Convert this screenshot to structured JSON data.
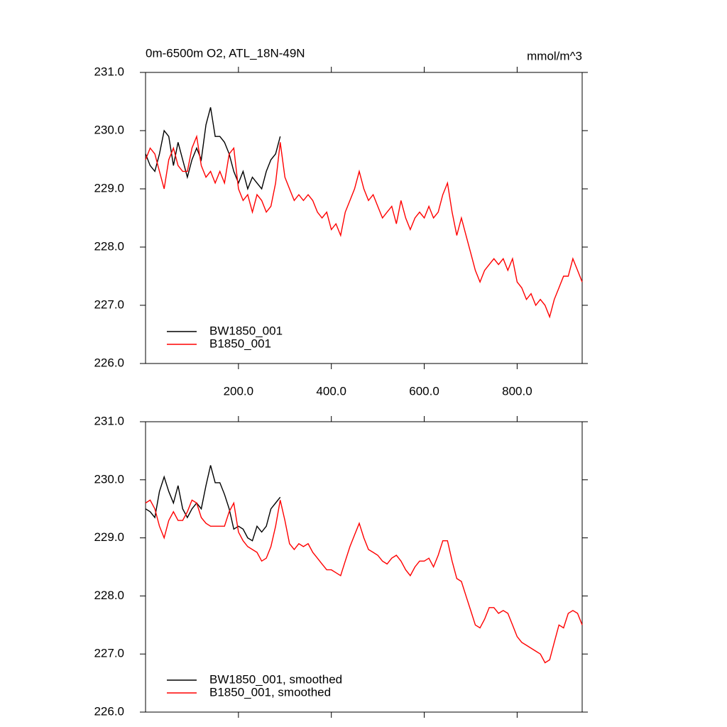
{
  "chart_data": [
    {
      "type": "line",
      "title": "0m-6500m O2, ATL_18N-49N",
      "units": "mmol/m^3",
      "xlim": [
        0,
        940
      ],
      "ylim": [
        226,
        231
      ],
      "xticks": [
        {
          "value": 200,
          "label": "200.0"
        },
        {
          "value": 400,
          "label": "400.0"
        },
        {
          "value": 600,
          "label": "600.0"
        },
        {
          "value": 800,
          "label": "800.0"
        }
      ],
      "yticks": [
        {
          "value": 226,
          "label": "226.0"
        },
        {
          "value": 227,
          "label": "227.0"
        },
        {
          "value": 228,
          "label": "228.0"
        },
        {
          "value": 229,
          "label": "229.0"
        },
        {
          "value": 230,
          "label": "230.0"
        },
        {
          "value": 231,
          "label": "231.0"
        }
      ],
      "legend": "lower left",
      "series": [
        {
          "name": "BW1850_001",
          "color": "#000000",
          "x": [
            0,
            10,
            20,
            30,
            40,
            50,
            60,
            70,
            80,
            90,
            100,
            110,
            120,
            130,
            140,
            150,
            160,
            170,
            180,
            190,
            200,
            210,
            220,
            230,
            240,
            250,
            260,
            270,
            280,
            290
          ],
          "values": [
            229.6,
            229.4,
            229.3,
            229.6,
            230.0,
            229.9,
            229.4,
            229.8,
            229.5,
            229.2,
            229.5,
            229.7,
            229.5,
            230.1,
            230.4,
            229.9,
            229.9,
            229.8,
            229.6,
            229.3,
            229.1,
            229.3,
            229.0,
            229.2,
            229.1,
            229.0,
            229.3,
            229.5,
            229.6,
            229.9
          ]
        },
        {
          "name": "B1850_001",
          "color": "#ff0000",
          "x": [
            0,
            10,
            20,
            30,
            40,
            50,
            60,
            70,
            80,
            90,
            100,
            110,
            120,
            130,
            140,
            150,
            160,
            170,
            180,
            190,
            200,
            210,
            220,
            230,
            240,
            250,
            260,
            270,
            280,
            290,
            300,
            310,
            320,
            330,
            340,
            350,
            360,
            370,
            380,
            390,
            400,
            410,
            420,
            430,
            440,
            450,
            460,
            470,
            480,
            490,
            500,
            510,
            520,
            530,
            540,
            550,
            560,
            570,
            580,
            590,
            600,
            610,
            620,
            630,
            640,
            650,
            660,
            670,
            680,
            690,
            700,
            710,
            720,
            730,
            740,
            750,
            760,
            770,
            780,
            790,
            800,
            810,
            820,
            830,
            840,
            850,
            860,
            870,
            880,
            890,
            900,
            910,
            920,
            930,
            940
          ],
          "values": [
            229.5,
            229.7,
            229.6,
            229.3,
            229.0,
            229.5,
            229.7,
            229.4,
            229.3,
            229.3,
            229.7,
            229.9,
            229.4,
            229.2,
            229.3,
            229.1,
            229.3,
            229.1,
            229.6,
            229.7,
            229.0,
            228.8,
            228.9,
            228.6,
            228.9,
            228.8,
            228.6,
            228.7,
            229.1,
            229.8,
            229.2,
            229.0,
            228.8,
            228.9,
            228.8,
            228.9,
            228.8,
            228.6,
            228.5,
            228.6,
            228.3,
            228.4,
            228.2,
            228.6,
            228.8,
            229.0,
            229.3,
            229.0,
            228.8,
            228.9,
            228.7,
            228.5,
            228.6,
            228.7,
            228.4,
            228.8,
            228.5,
            228.3,
            228.5,
            228.6,
            228.5,
            228.7,
            228.5,
            228.6,
            228.9,
            229.1,
            228.6,
            228.2,
            228.5,
            228.2,
            227.9,
            227.6,
            227.4,
            227.6,
            227.7,
            227.8,
            227.7,
            227.8,
            227.6,
            227.8,
            227.4,
            227.3,
            227.1,
            227.2,
            227.0,
            227.1,
            227.0,
            226.8,
            227.1,
            227.3,
            227.5,
            227.5,
            227.8,
            227.6,
            227.4
          ]
        }
      ]
    },
    {
      "type": "line",
      "xlim": [
        0,
        940
      ],
      "ylim": [
        226,
        231
      ],
      "xticks": [
        200,
        400,
        600,
        800
      ],
      "yticks": [
        {
          "value": 226,
          "label": "226.0"
        },
        {
          "value": 227,
          "label": "227.0"
        },
        {
          "value": 228,
          "label": "228.0"
        },
        {
          "value": 229,
          "label": "229.0"
        },
        {
          "value": 230,
          "label": "230.0"
        },
        {
          "value": 231,
          "label": "231.0"
        }
      ],
      "legend": "lower left",
      "series": [
        {
          "name": "BW1850_001, smoothed",
          "color": "#000000",
          "x": [
            0,
            10,
            20,
            30,
            40,
            50,
            60,
            70,
            80,
            90,
            100,
            110,
            120,
            130,
            140,
            150,
            160,
            170,
            180,
            190,
            200,
            210,
            220,
            230,
            240,
            250,
            260,
            270,
            280,
            290
          ],
          "values": [
            229.5,
            229.45,
            229.35,
            229.8,
            230.05,
            229.8,
            229.6,
            229.9,
            229.5,
            229.35,
            229.5,
            229.6,
            229.5,
            229.9,
            230.25,
            229.95,
            229.95,
            229.75,
            229.5,
            229.15,
            229.2,
            229.15,
            229.0,
            228.95,
            229.2,
            229.1,
            229.2,
            229.5,
            229.6,
            229.7
          ]
        },
        {
          "name": "B1850_001, smoothed",
          "color": "#ff0000",
          "x": [
            0,
            10,
            20,
            30,
            40,
            50,
            60,
            70,
            80,
            90,
            100,
            110,
            120,
            130,
            140,
            150,
            160,
            170,
            180,
            190,
            200,
            210,
            220,
            230,
            240,
            250,
            260,
            270,
            280,
            290,
            300,
            310,
            320,
            330,
            340,
            350,
            360,
            370,
            380,
            390,
            400,
            410,
            420,
            430,
            440,
            450,
            460,
            470,
            480,
            490,
            500,
            510,
            520,
            530,
            540,
            550,
            560,
            570,
            580,
            590,
            600,
            610,
            620,
            630,
            640,
            650,
            660,
            670,
            680,
            690,
            700,
            710,
            720,
            730,
            740,
            750,
            760,
            770,
            780,
            790,
            800,
            810,
            820,
            830,
            840,
            850,
            860,
            870,
            880,
            890,
            900,
            910,
            920,
            930,
            940
          ],
          "values": [
            229.6,
            229.65,
            229.5,
            229.2,
            229.0,
            229.3,
            229.45,
            229.3,
            229.3,
            229.45,
            229.65,
            229.6,
            229.35,
            229.25,
            229.2,
            229.2,
            229.2,
            229.2,
            229.45,
            229.6,
            229.1,
            228.95,
            228.85,
            228.8,
            228.75,
            228.6,
            228.65,
            228.85,
            229.2,
            229.65,
            229.3,
            228.9,
            228.8,
            228.9,
            228.85,
            228.9,
            228.75,
            228.65,
            228.55,
            228.45,
            228.45,
            228.4,
            228.35,
            228.6,
            228.85,
            229.05,
            229.25,
            229.0,
            228.8,
            228.75,
            228.7,
            228.6,
            228.55,
            228.65,
            228.7,
            228.6,
            228.45,
            228.35,
            228.5,
            228.6,
            228.6,
            228.65,
            228.5,
            228.7,
            228.95,
            228.95,
            228.6,
            228.3,
            228.25,
            228.0,
            227.75,
            227.5,
            227.45,
            227.6,
            227.8,
            227.8,
            227.7,
            227.75,
            227.7,
            227.5,
            227.3,
            227.2,
            227.15,
            227.1,
            227.05,
            227.0,
            226.85,
            226.9,
            227.2,
            227.5,
            227.45,
            227.7,
            227.75,
            227.7,
            227.5
          ]
        }
      ]
    }
  ]
}
